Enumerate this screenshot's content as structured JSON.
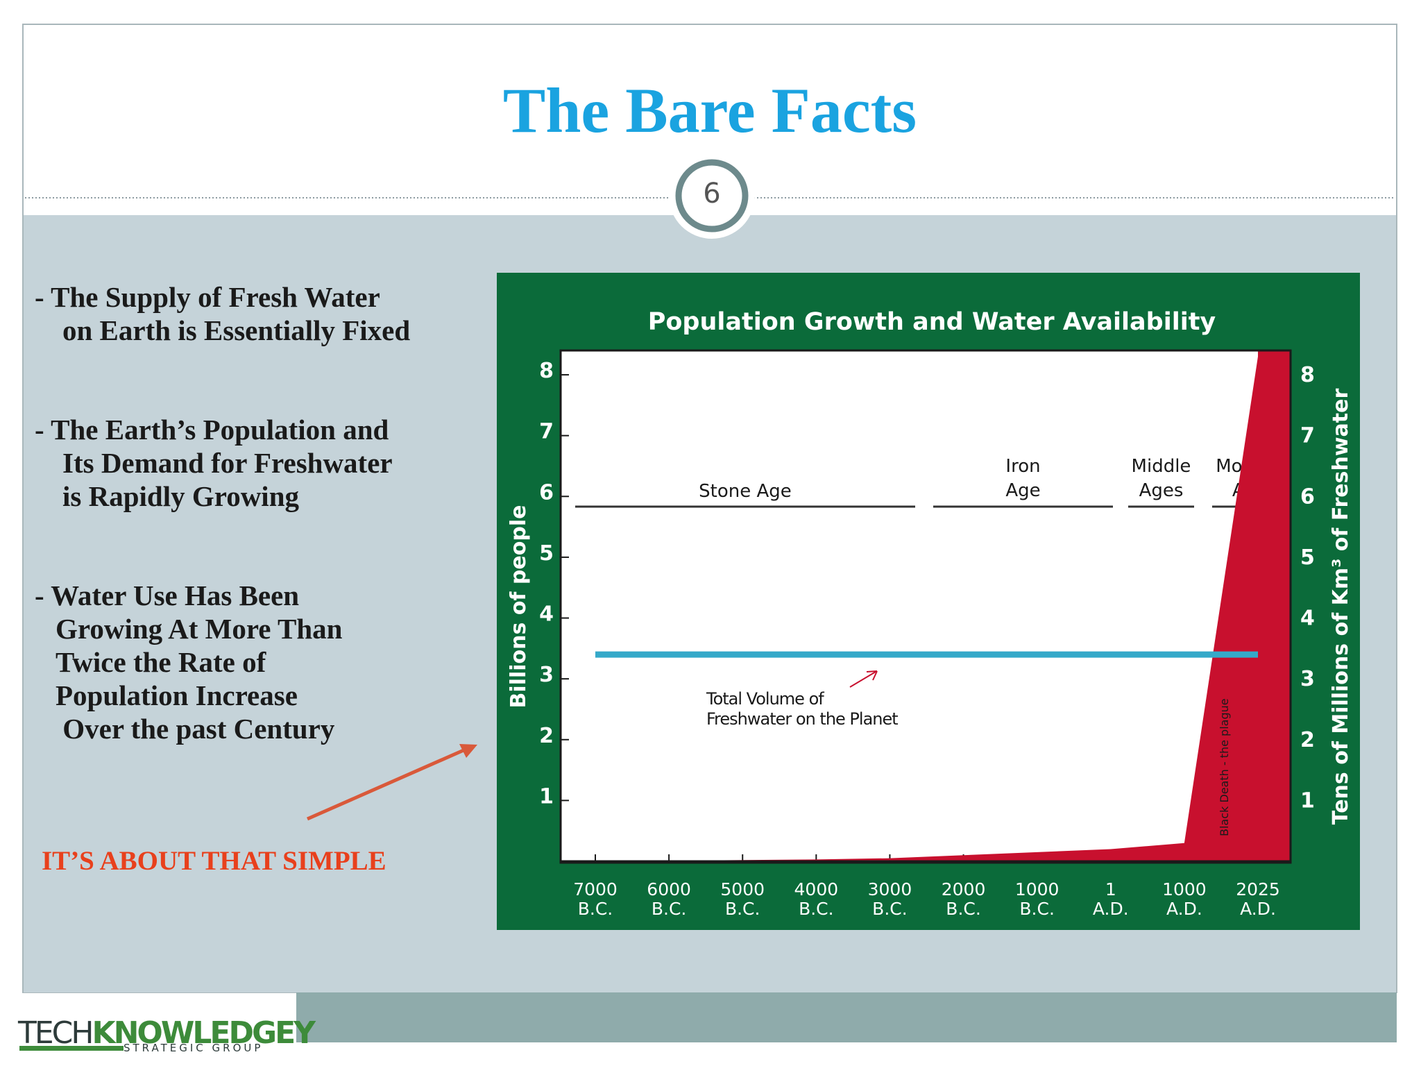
{
  "header": {
    "title": "The Bare Facts",
    "page_number": "6"
  },
  "bullets": [
    [
      "-  The Supply of Fresh Water",
      "on Earth is Essentially  Fixed"
    ],
    [
      "-  The Earth’s Population and",
      "Its Demand for Freshwater",
      "is Rapidly Growing"
    ],
    [
      "- Water Use Has Been",
      "Growing At More Than",
      "Twice the Rate of",
      "Population Increase",
      " Over the past Century"
    ]
  ],
  "callout": "IT’S ABOUT THAT SIMPLE",
  "logo": {
    "tech": "TECH",
    "knowledgey": "KNOWLEDGEY",
    "tagline": "STRATEGIC GROUP"
  },
  "chart_data": {
    "type": "area",
    "title": "Population Growth and Water Availability",
    "y_label": "Billions of people",
    "y2_label": "Tens of Millions of Km³ of Freshwater",
    "categories": [
      [
        "7000",
        "B.C."
      ],
      [
        "6000",
        "B.C."
      ],
      [
        "5000",
        "B.C."
      ],
      [
        "4000",
        "B.C."
      ],
      [
        "3000",
        "B.C."
      ],
      [
        "2000",
        "B.C."
      ],
      [
        "1000",
        "B.C."
      ],
      [
        "1",
        "A.D."
      ],
      [
        "1000",
        "A.D."
      ],
      [
        "2025",
        "A.D."
      ]
    ],
    "series": [
      {
        "name": "Population",
        "color": "#c8102e",
        "values": [
          0.005,
          0.01,
          0.02,
          0.03,
          0.05,
          0.1,
          0.15,
          0.2,
          0.3,
          8.3
        ]
      },
      {
        "name": "Total Volume of Freshwater",
        "color": "#35a9c9",
        "axis": "y2",
        "values": [
          3.4,
          3.4,
          3.4,
          3.4,
          3.4,
          3.4,
          3.4,
          3.4,
          3.4,
          3.4
        ]
      }
    ],
    "ylim": [
      0,
      8.4
    ],
    "yticks": [
      1,
      2,
      3,
      4,
      5,
      6,
      7,
      8
    ],
    "y2lim": [
      0,
      8.4
    ],
    "y2ticks": [
      1,
      2,
      3,
      4,
      5,
      6,
      7,
      8
    ],
    "eras": [
      [
        "Stone Age"
      ],
      [
        "Iron",
        "Age"
      ],
      [
        "Middle",
        "Ages"
      ],
      [
        "Modern",
        "Age"
      ]
    ],
    "annotations": [
      [
        "Total Volume of",
        "Freshwater on the Planet"
      ],
      "Black Death - the plague"
    ]
  }
}
